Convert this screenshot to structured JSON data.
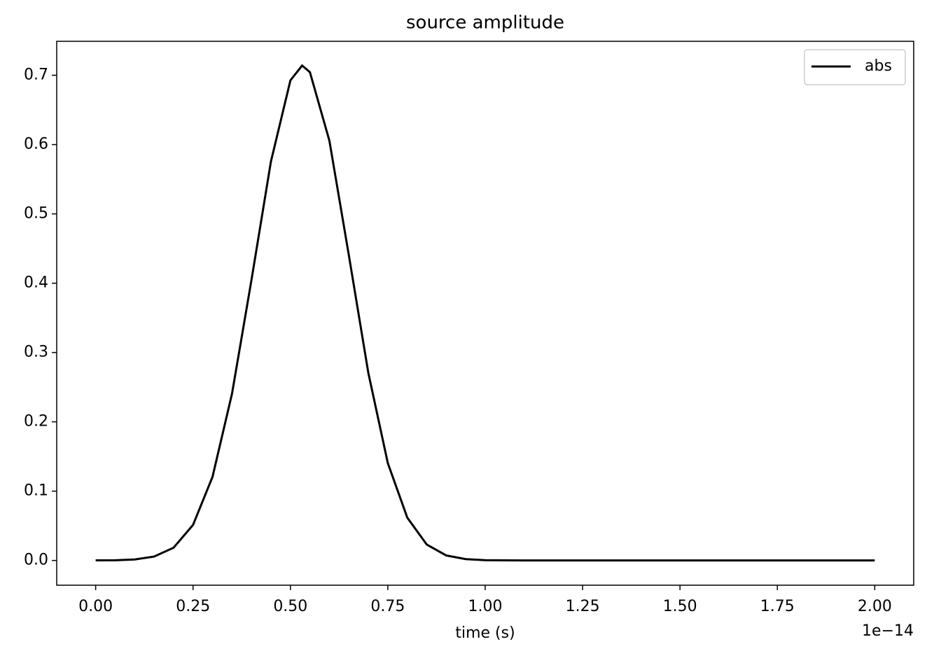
{
  "chart_data": {
    "type": "line",
    "title": "source amplitude",
    "x_label": "time (s)",
    "x_offset_label": "1e−14",
    "x": [
      0,
      0.05,
      0.1,
      0.15,
      0.2,
      0.25,
      0.3,
      0.35,
      0.4,
      0.45,
      0.5,
      0.53,
      0.55,
      0.6,
      0.65,
      0.7,
      0.75,
      0.8,
      0.85,
      0.9,
      0.95,
      1.0,
      1.05,
      1.1,
      1.5,
      2.0
    ],
    "series": [
      {
        "name": "abs",
        "color": "#000000",
        "values": [
          0.0001,
          0.0003,
          0.0014,
          0.0056,
          0.0184,
          0.0513,
          0.1207,
          0.2405,
          0.4047,
          0.5758,
          0.6927,
          0.714,
          0.7045,
          0.6056,
          0.4402,
          0.2705,
          0.1404,
          0.0617,
          0.0229,
          0.0072,
          0.0019,
          0.0004,
          0.0001,
          0,
          0,
          0
        ]
      }
    ],
    "xlim": [
      -0.1,
      2.1
    ],
    "xticks": [
      {
        "value": 0,
        "label": "0.00"
      },
      0.25,
      {
        "value": 0.5,
        "label": "0.50"
      },
      0.75,
      {
        "value": 1,
        "label": "1.00"
      },
      1.25,
      {
        "value": 1.5,
        "label": "1.50"
      },
      1.75,
      {
        "value": 2,
        "label": "2.00"
      }
    ],
    "ylim": [
      -0.0357,
      0.749
    ],
    "yticks": [
      {
        "value": 0,
        "label": "0.0"
      },
      0.1,
      0.2,
      0.3,
      0.4,
      0.5,
      0.6,
      0.7
    ],
    "grid": false,
    "legend": "upper right"
  }
}
